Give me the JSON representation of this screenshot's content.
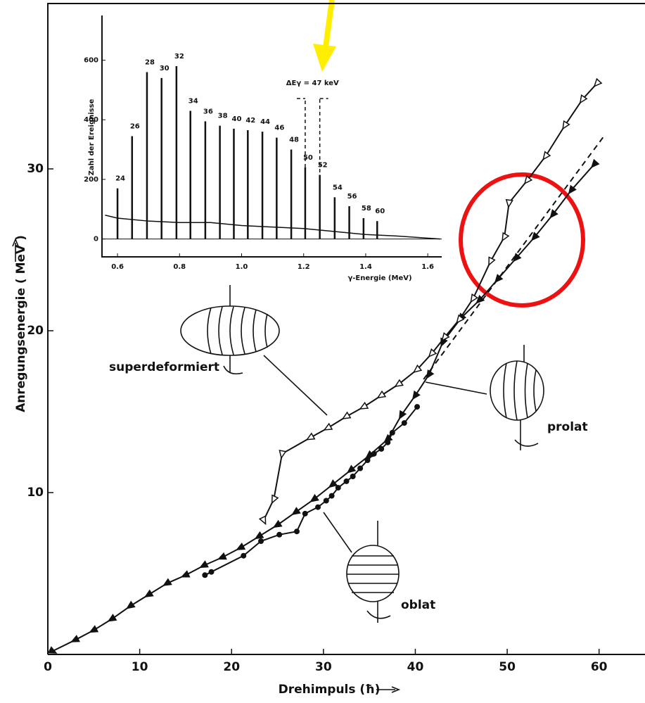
{
  "chart_data": [
    {
      "type": "line",
      "xlabel": "Drehimpuls (ħ)",
      "ylabel": "Anregungsenergie ( MeV )",
      "xlim": [
        0,
        65
      ],
      "ylim": [
        0,
        40
      ],
      "xticks": [
        0,
        10,
        20,
        30,
        40,
        50,
        60
      ],
      "yticks": [
        10,
        20,
        30
      ],
      "annotations": [
        "superdeformiert",
        "prolat",
        "oblat"
      ],
      "series": [
        {
          "marker": "triangle-filled",
          "color": "#111111",
          "x": [
            0.5,
            3,
            5,
            7,
            9,
            11,
            13,
            15,
            17,
            19,
            21,
            23,
            25,
            27,
            29,
            31,
            33,
            35,
            37,
            38.5,
            40,
            41.5,
            43,
            45,
            47,
            49,
            51,
            53,
            55,
            57,
            59.5
          ],
          "values": [
            0.2,
            0.9,
            1.5,
            2.2,
            3,
            3.7,
            4.4,
            4.9,
            5.5,
            6,
            6.6,
            7.3,
            8,
            8.8,
            9.6,
            10.5,
            11.4,
            12.3,
            13.3,
            14.8,
            16,
            17.3,
            19.3,
            20.8,
            21.9,
            23.2,
            24.5,
            25.8,
            27.2,
            28.7,
            30.3
          ]
        },
        {
          "marker": "triangle-open",
          "color": "#111111",
          "x": [
            23.5,
            24.6,
            25.5,
            28.6,
            30.5,
            32.5,
            34.4,
            36.3,
            38.2,
            40.2,
            41.8,
            43.2,
            44.8,
            46.3,
            48.2,
            49.7,
            50.2,
            52.2,
            54.2,
            56.3,
            58.2,
            59.8
          ],
          "values": [
            8.3,
            9.6,
            12.4,
            13.4,
            14,
            14.7,
            15.3,
            16,
            16.7,
            17.6,
            18.6,
            19.6,
            20.7,
            22,
            24.3,
            25.8,
            27.9,
            29.3,
            30.8,
            32.7,
            34.3,
            35.3
          ]
        },
        {
          "marker": "circle",
          "color": "#111111",
          "x": [
            17.1,
            17.8,
            21.3,
            23.2,
            25.2,
            27.1,
            28,
            29.4,
            30.3,
            30.9,
            31.6,
            32.5,
            33.2,
            34,
            34.8,
            35.5,
            36.3,
            37,
            37.5,
            38.8,
            40.2
          ],
          "values": [
            4.9,
            5.1,
            6.1,
            7,
            7.4,
            7.6,
            8.7,
            9.1,
            9.5,
            9.8,
            10.3,
            10.7,
            11,
            11.5,
            12,
            12.4,
            12.7,
            13.1,
            13.7,
            14.3,
            15.3
          ]
        },
        {
          "marker": "none",
          "dash": true,
          "color": "#111111",
          "x": [
            40.9,
            60.5
          ],
          "values": [
            17,
            32
          ]
        }
      ]
    },
    {
      "type": "spectrum",
      "xlabel": "γ-Energie (MeV)",
      "ylabel": "Zahl der Ereignisse",
      "xlim": [
        0.55,
        1.645
      ],
      "ylim": [
        -60,
        750
      ],
      "xticks": [
        0.6,
        0.8,
        {
          "value": 1,
          "label": "1.0"
        },
        1.2,
        1.4,
        1.6
      ],
      "yticks": [
        0,
        200,
        400,
        600
      ],
      "peak_labels": [
        24,
        26,
        28,
        30,
        32,
        34,
        36,
        38,
        40,
        42,
        44,
        46,
        48,
        50,
        52,
        54,
        56,
        58,
        60
      ],
      "peak_energies": [
        0.6,
        0.647,
        0.695,
        0.742,
        0.79,
        0.835,
        0.883,
        0.93,
        0.975,
        1.02,
        1.067,
        1.113,
        1.16,
        1.205,
        1.252,
        1.3,
        1.347,
        1.393,
        1.437
      ],
      "peak_counts": [
        170,
        345,
        560,
        540,
        580,
        430,
        395,
        380,
        370,
        365,
        360,
        340,
        300,
        240,
        215,
        140,
        110,
        70,
        60
      ],
      "background_x": [
        0.56,
        0.6,
        0.7,
        0.8,
        0.9,
        1.0,
        1.1,
        1.2,
        1.3,
        1.4,
        1.5,
        1.64
      ],
      "background_counts": [
        80,
        70,
        60,
        55,
        55,
        45,
        40,
        35,
        25,
        15,
        10,
        0
      ],
      "delta_label": "ΔEγ = 47 keV"
    }
  ]
}
